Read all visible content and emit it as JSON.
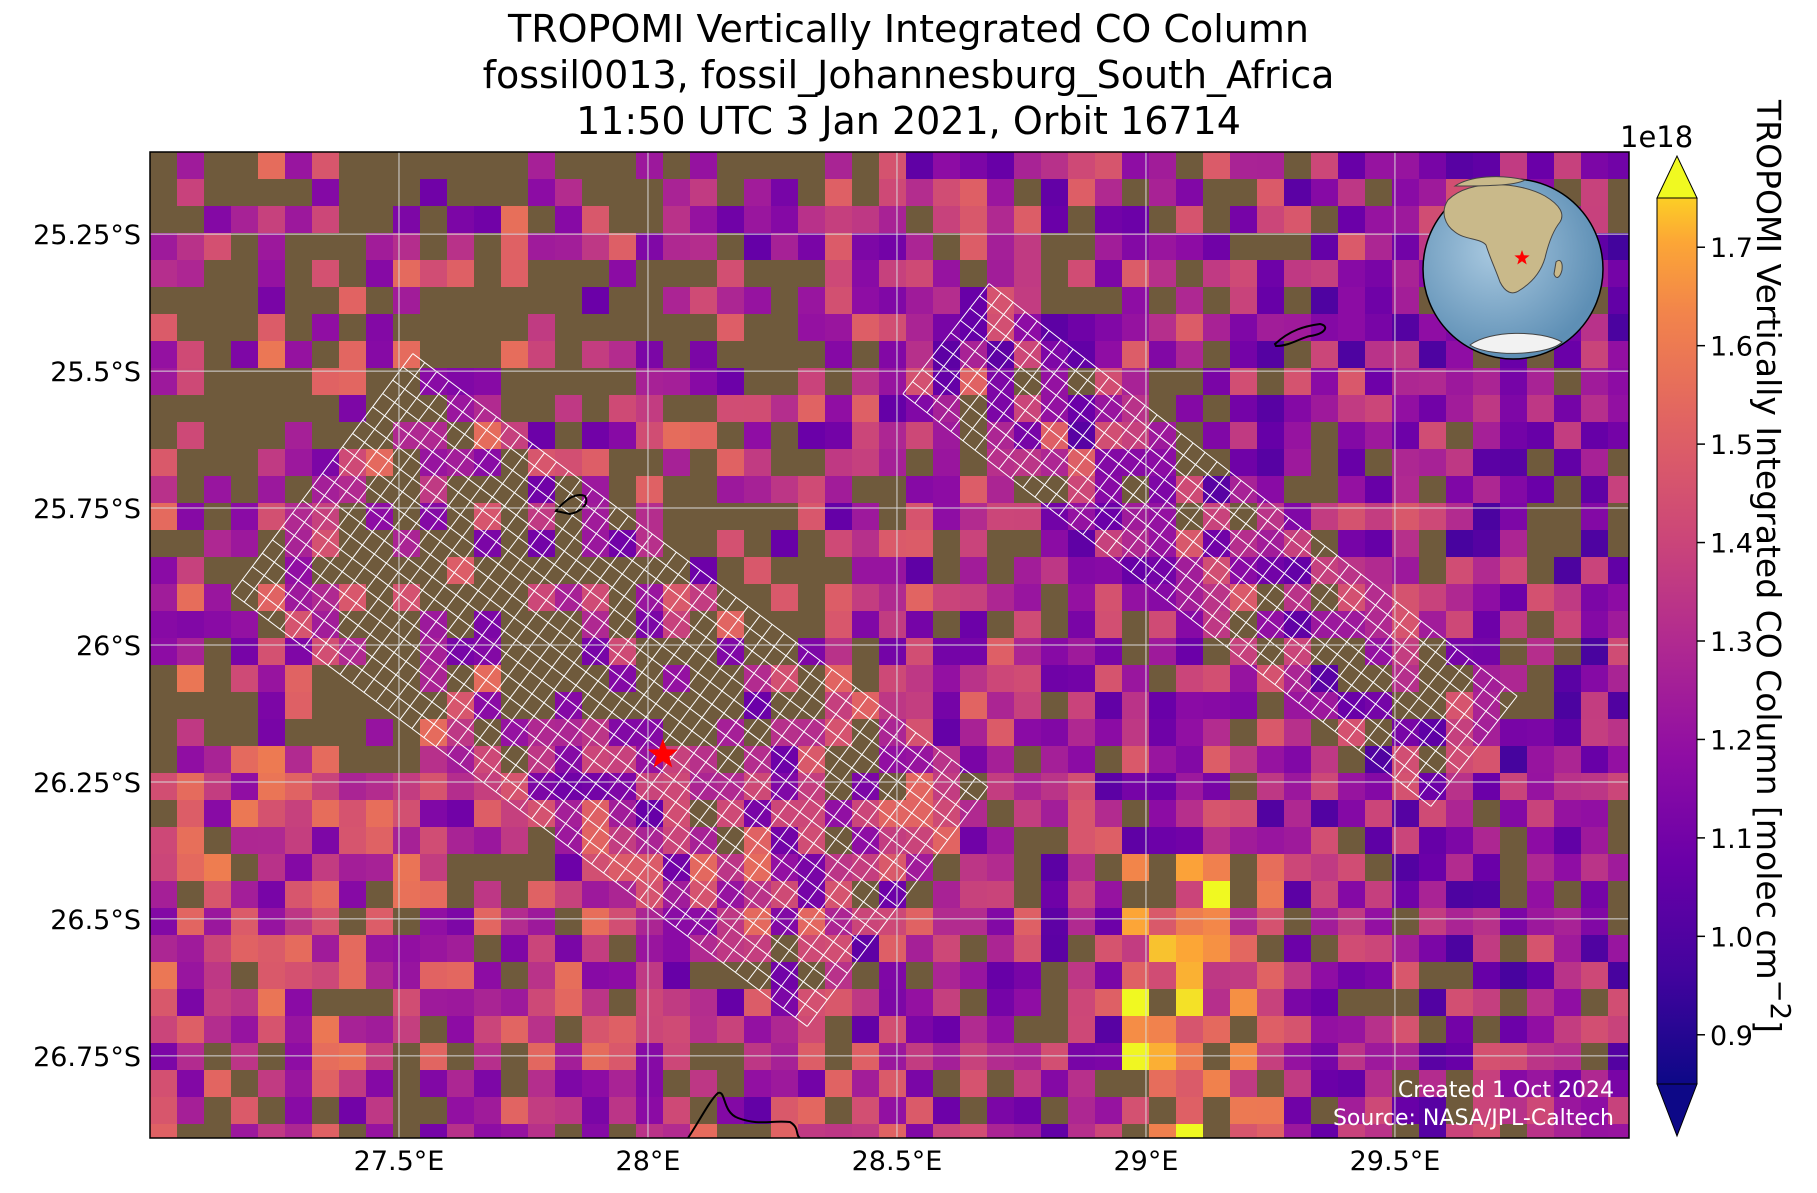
{
  "title": {
    "line1": "TROPOMI Vertically Integrated CO Column",
    "line2": "fossil0013, fossil_Johannesburg_South_Africa",
    "line3": "11:50 UTC 3 Jan 2021, Orbit 16714"
  },
  "axes": {
    "x_ticks": [
      {
        "value": 27.5,
        "label": "27.5°E"
      },
      {
        "value": 28.0,
        "label": "28°E"
      },
      {
        "value": 28.5,
        "label": "28.5°E"
      },
      {
        "value": 29.0,
        "label": "29°E"
      },
      {
        "value": 29.5,
        "label": "29.5°E"
      }
    ],
    "y_ticks": [
      {
        "value": -25.25,
        "label": "25.25°S"
      },
      {
        "value": -25.5,
        "label": "25.5°S"
      },
      {
        "value": -25.75,
        "label": "25.75°S"
      },
      {
        "value": -26.0,
        "label": "26°S"
      },
      {
        "value": -26.25,
        "label": "26.25°S"
      },
      {
        "value": -26.5,
        "label": "26.5°S"
      },
      {
        "value": -26.75,
        "label": "26.75°S"
      }
    ],
    "lon_range": [
      27.0,
      29.97
    ],
    "lat_range": [
      -26.9,
      -25.1
    ],
    "grid": true
  },
  "colorbar": {
    "label": "TROPOMI Vertically Integrated CO Column [molec cm$^{-2}$]",
    "exponent": "1e18",
    "ticks": [
      "0.9",
      "1.0",
      "1.1",
      "1.2",
      "1.3",
      "1.4",
      "1.5",
      "1.6",
      "1.7"
    ],
    "tick_values": [
      0.9,
      1.0,
      1.1,
      1.2,
      1.3,
      1.4,
      1.5,
      1.6,
      1.7
    ],
    "range": [
      0.85,
      1.75
    ],
    "colormap": "plasma",
    "extend": "both"
  },
  "site_marker": {
    "lon": 28.03,
    "lat": -26.2,
    "symbol": "star",
    "color": "#ff0000"
  },
  "inset_globe": {
    "marker_symbol": "star",
    "marker_color": "#ff0000"
  },
  "credits": {
    "created": "Created 1 Oct 2024",
    "source": "Source: NASA/JPL-Caltech"
  },
  "colors": {
    "land": "#6f5a3c",
    "ocean": "#7ea9c9",
    "grid": "#d8d8d8",
    "overlay_grid": "#ffffff",
    "marker": "#ff0000"
  }
}
